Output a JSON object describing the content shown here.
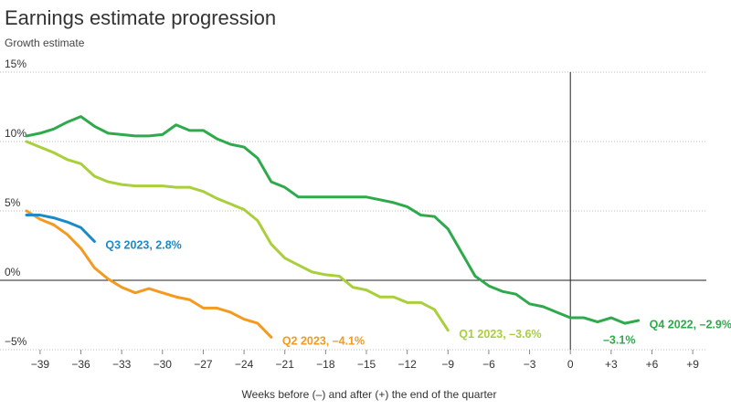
{
  "chart_data": {
    "type": "line",
    "title": "Earnings estimate progression",
    "subtitle": "Growth estimate",
    "x_label": "Weeks before (–) and after (+) the end of the quarter",
    "xlim": [
      -40,
      10
    ],
    "ylim": [
      -5,
      15
    ],
    "xticks": [
      {
        "value": -39,
        "label": "−39"
      },
      {
        "value": -36,
        "label": "−36"
      },
      {
        "value": -33,
        "label": "−33"
      },
      {
        "value": -30,
        "label": "−30"
      },
      {
        "value": -27,
        "label": "−27"
      },
      {
        "value": -24,
        "label": "−24"
      },
      {
        "value": -21,
        "label": "−21"
      },
      {
        "value": -18,
        "label": "−18"
      },
      {
        "value": -15,
        "label": "−15"
      },
      {
        "value": -12,
        "label": "−12"
      },
      {
        "value": -9,
        "label": "−9"
      },
      {
        "value": -6,
        "label": "−6"
      },
      {
        "value": -3,
        "label": "−3"
      },
      0,
      {
        "value": 3,
        "label": "+3"
      },
      {
        "value": 6,
        "label": "+6"
      },
      {
        "value": 9,
        "label": "+9"
      }
    ],
    "yticks": [
      {
        "value": -5,
        "label": "−5%"
      },
      {
        "value": 0,
        "label": "0%"
      },
      {
        "value": 5,
        "label": "5%"
      },
      {
        "value": 10,
        "label": "10%"
      },
      {
        "value": 15,
        "label": "15%"
      }
    ],
    "grid": true,
    "zero_line": true,
    "vline": 0,
    "series": [
      {
        "name": "Q4 2022, –2.9%",
        "color": "#2eaa4c",
        "x": [
          -40,
          -39,
          -38,
          -37,
          -36,
          -35,
          -34,
          -33,
          -32,
          -31,
          -30,
          -29,
          -28,
          -27,
          -26,
          -25,
          -24,
          -23,
          -22,
          -21,
          -20,
          -19,
          -18,
          -17,
          -16,
          -15,
          -14,
          -13,
          -12,
          -11,
          -10,
          -9,
          -8,
          -7,
          -6,
          -5,
          -4,
          -3,
          -2,
          -1,
          0,
          1,
          2,
          3,
          4,
          5
        ],
        "values": [
          10.4,
          10.6,
          10.9,
          11.4,
          11.8,
          11.1,
          10.6,
          10.5,
          10.4,
          10.4,
          10.5,
          11.2,
          10.8,
          10.8,
          10.2,
          9.8,
          9.6,
          8.8,
          7.1,
          6.7,
          6.0,
          6.0,
          6.0,
          6.0,
          6.0,
          6.0,
          5.8,
          5.6,
          5.3,
          4.7,
          4.6,
          3.7,
          2.0,
          0.3,
          -0.4,
          -0.8,
          -1.0,
          -1.7,
          -1.9,
          -2.3,
          -2.7,
          -2.7,
          -3.0,
          -2.7,
          -3.1,
          -2.9
        ],
        "value_labels": [
          null,
          null,
          null,
          null,
          null,
          null,
          null,
          null,
          null,
          null,
          null,
          null,
          null,
          null,
          null,
          null,
          null,
          null,
          null,
          null,
          null,
          null,
          null,
          null,
          null,
          null,
          null,
          null,
          null,
          null,
          null,
          null,
          null,
          null,
          null,
          null,
          null,
          null,
          null,
          null,
          null,
          null,
          null,
          null,
          "–3.1%",
          null
        ]
      },
      {
        "name": "Q1 2023, –3.6%",
        "color": "#a9cf3a",
        "x": [
          -40,
          -39,
          -38,
          -37,
          -36,
          -35,
          -34,
          -33,
          -32,
          -31,
          -30,
          -29,
          -28,
          -27,
          -26,
          -25,
          -24,
          -23,
          -22,
          -21,
          -20,
          -19,
          -18,
          -17,
          -16,
          -15,
          -14,
          -13,
          -12,
          -11,
          -10,
          -9
        ],
        "values": [
          10.0,
          9.6,
          9.2,
          8.7,
          8.4,
          7.5,
          7.1,
          6.9,
          6.8,
          6.8,
          6.8,
          6.7,
          6.7,
          6.4,
          5.9,
          5.5,
          5.1,
          4.3,
          2.6,
          1.6,
          1.1,
          0.6,
          0.4,
          0.3,
          -0.5,
          -0.7,
          -1.2,
          -1.2,
          -1.6,
          -1.6,
          -2.1,
          -3.6
        ]
      },
      {
        "name": "Q2 2023, –4.1%",
        "color": "#f39a1f",
        "x": [
          -40,
          -39,
          -38,
          -37,
          -36,
          -35,
          -34,
          -33,
          -32,
          -31,
          -30,
          -29,
          -28,
          -27,
          -26,
          -25,
          -24,
          -23,
          -22
        ],
        "values": [
          5.0,
          4.4,
          4.0,
          3.3,
          2.3,
          0.9,
          0.1,
          -0.5,
          -0.9,
          -0.6,
          -0.9,
          -1.2,
          -1.4,
          -2.0,
          -2.0,
          -2.3,
          -2.8,
          -3.1,
          -4.1
        ]
      },
      {
        "name": "Q3 2023, 2.8%",
        "color": "#1b8ac7",
        "x": [
          -40,
          -39,
          -38,
          -37,
          -36,
          -35
        ],
        "values": [
          4.7,
          4.7,
          4.5,
          4.2,
          3.8,
          2.8
        ]
      }
    ]
  }
}
